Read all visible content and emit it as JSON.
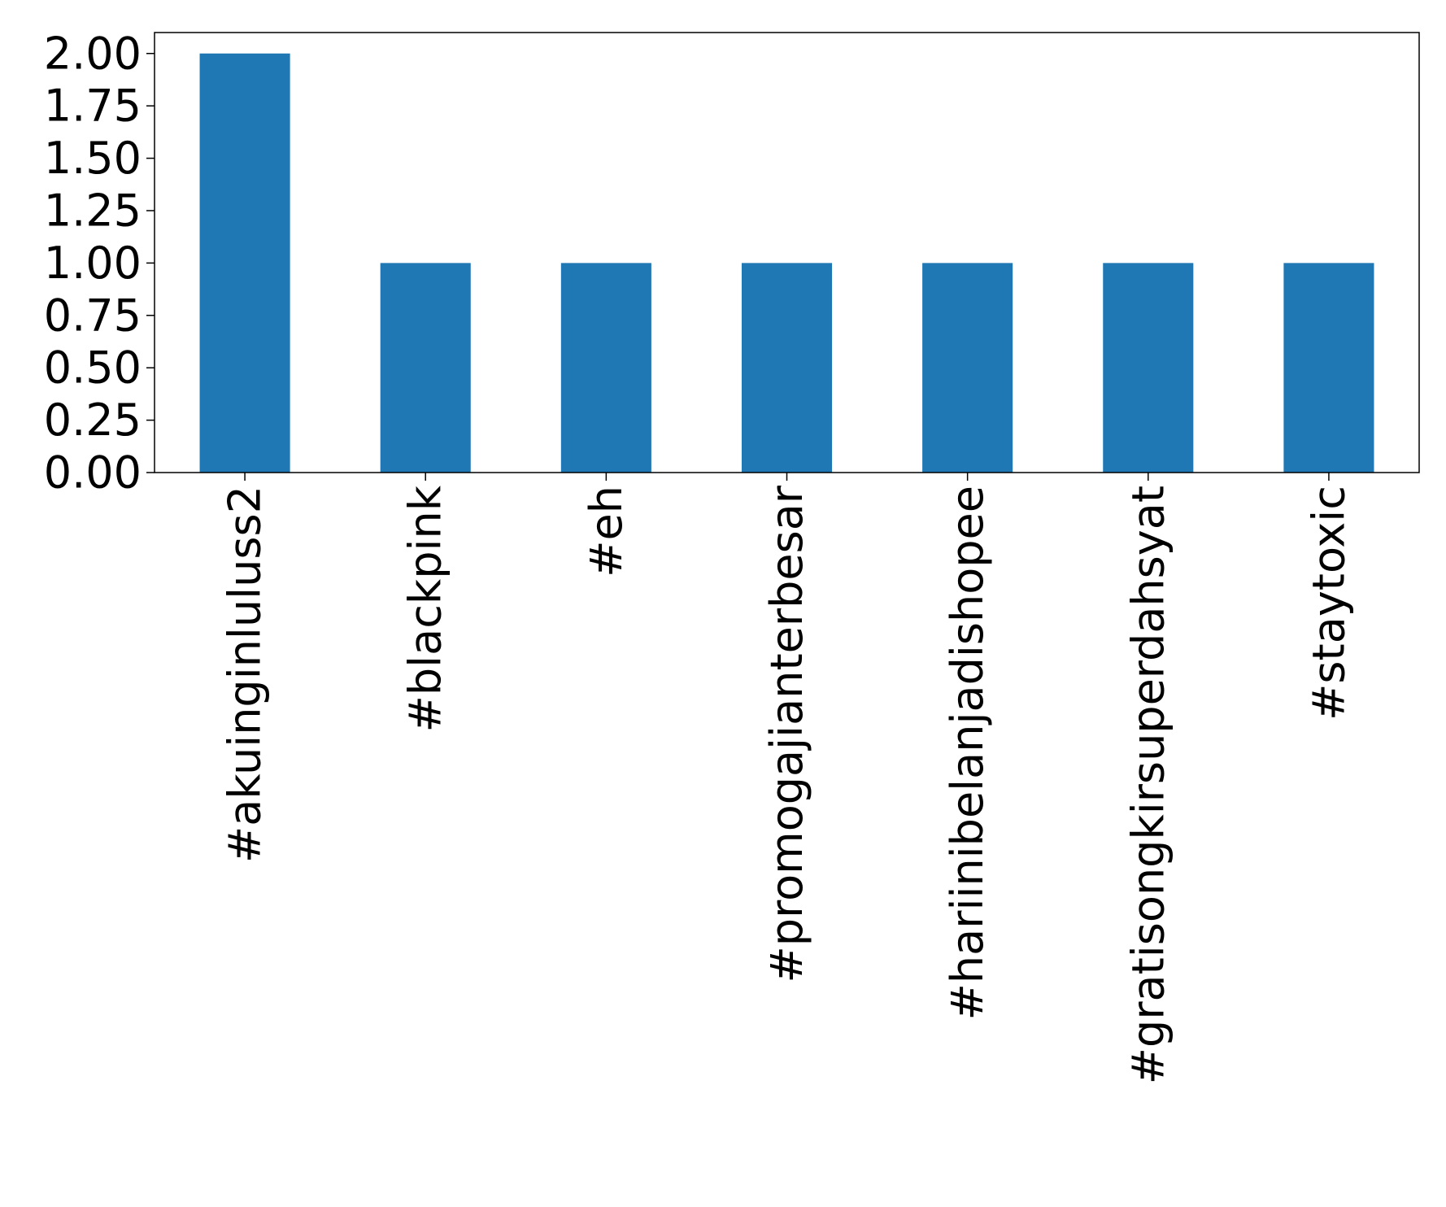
{
  "chart_data": {
    "type": "bar",
    "title": "",
    "xlabel": "",
    "ylabel": "",
    "categories": [
      "#akuinginluluss2",
      "#blackpink",
      "#eh",
      "#promogajianterbesar",
      "#hariinibelanjadishopee",
      "#gratisongkirsuperdahsyat",
      "#staytoxic"
    ],
    "values": [
      2,
      1,
      1,
      1,
      1,
      1,
      1
    ],
    "ylim": [
      0,
      2.1
    ],
    "yticks": [
      "0.00",
      "0.25",
      "0.50",
      "0.75",
      "1.00",
      "1.25",
      "1.50",
      "1.75",
      "2.00"
    ],
    "grid": false,
    "legend": "none",
    "bar_color": "#1f77b4"
  }
}
